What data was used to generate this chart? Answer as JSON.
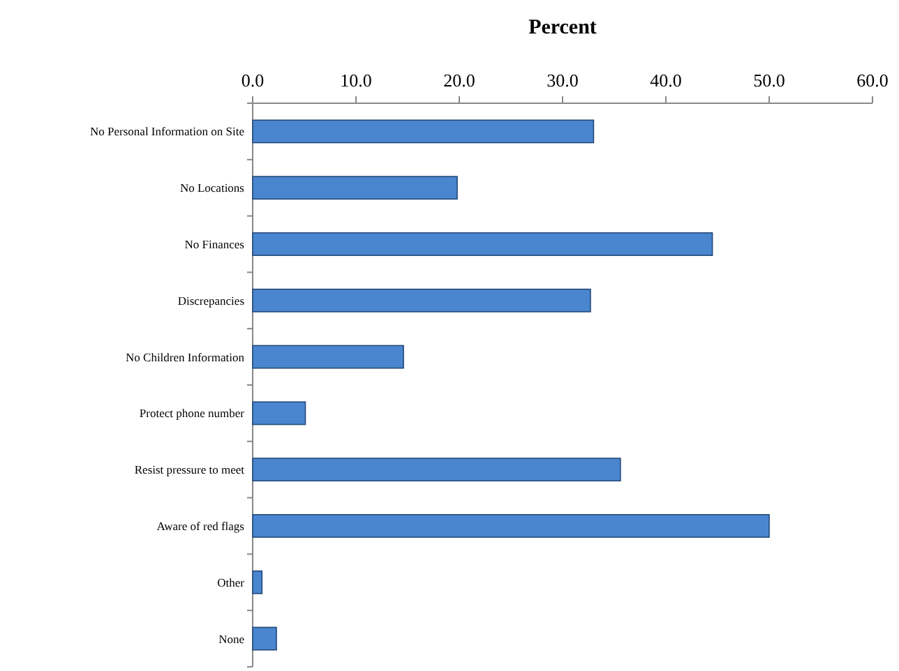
{
  "chart_data": {
    "type": "bar",
    "orientation": "horizontal",
    "xlabel": "Percent",
    "categories": [
      "No Personal Information on Site",
      "No Locations",
      "No Finances",
      "Discrepancies",
      "No Children Information",
      "Protect phone number",
      "Resist pressure to meet",
      "Aware of red flags",
      "Other",
      "None"
    ],
    "values": [
      33.0,
      19.8,
      44.5,
      32.7,
      14.6,
      5.1,
      35.6,
      50.0,
      0.9,
      2.3
    ],
    "color": "#4a86cf",
    "xlim": [
      0,
      60
    ],
    "xticks": [
      {
        "value": 0,
        "label": "0.0"
      },
      {
        "value": 10,
        "label": "10.0"
      },
      {
        "value": 20,
        "label": "20.0"
      },
      {
        "value": 30,
        "label": "30.0"
      },
      {
        "value": 40,
        "label": "40.0"
      },
      {
        "value": 50,
        "label": "50.0"
      },
      {
        "value": 60,
        "label": "60.0"
      }
    ],
    "grid": false,
    "legend": false
  }
}
